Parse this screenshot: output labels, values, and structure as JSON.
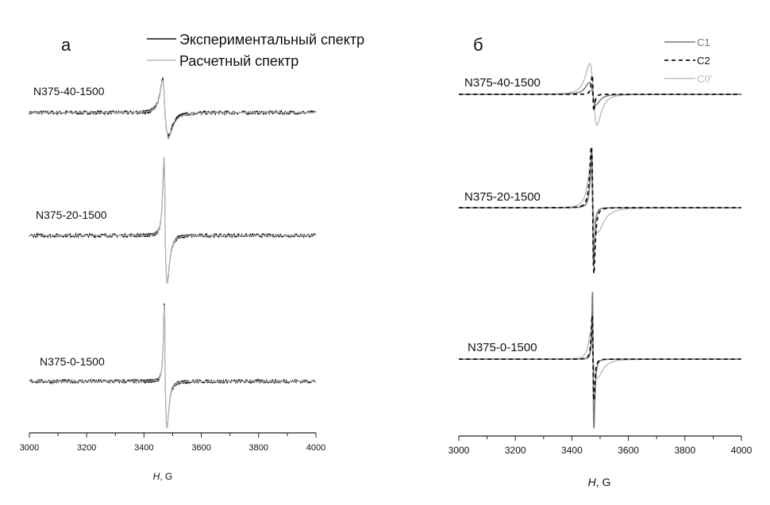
{
  "chart_data": [
    {
      "type": "line",
      "panel_label": "а",
      "xlabel_italic": "H",
      "xlabel_rest": ", G",
      "xlim": [
        3000,
        4000
      ],
      "xticks": [
        "3000",
        "3200",
        "3400",
        "3600",
        "3800",
        "4000"
      ],
      "grid": false,
      "legend_placement": "top",
      "legend": [
        {
          "name": "Экспериментальный спектр",
          "color": "#111111",
          "dash": false
        },
        {
          "name": "Расчетный спектр",
          "color": "#b9b9b9",
          "dash": false
        }
      ],
      "spectra": [
        {
          "label": "N375-40-1500",
          "experimental": {
            "center": 3473,
            "peak_field": 3465,
            "peak_amp": 0.42,
            "trough_field": 3485,
            "trough_amp": -0.3
          },
          "calculated": {
            "center": 3473,
            "peak_field": 3465,
            "peak_amp": 0.41,
            "trough_field": 3486,
            "trough_amp": -0.31
          }
        },
        {
          "label": "N375-20-1500",
          "experimental": {
            "center": 3474,
            "peak_field": 3470,
            "peak_amp": 0.97,
            "trough_field": 3481,
            "trough_amp": -0.6
          },
          "calculated": {
            "center": 3474,
            "peak_field": 3470,
            "peak_amp": 0.99,
            "trough_field": 3481,
            "trough_amp": -0.6
          }
        },
        {
          "label": "N375-0-1500",
          "experimental": {
            "center": 3474,
            "peak_field": 3471,
            "peak_amp": 0.98,
            "trough_field": 3480,
            "trough_amp": -0.59
          },
          "calculated": {
            "center": 3474,
            "peak_field": 3471,
            "peak_amp": 0.96,
            "trough_field": 3480,
            "trough_amp": -0.59
          }
        }
      ]
    },
    {
      "type": "line",
      "panel_label": "б",
      "xlabel_italic": "H",
      "xlabel_rest": ", G",
      "xlim": [
        3000,
        4000
      ],
      "xticks": [
        "3000",
        "3200",
        "3400",
        "3600",
        "3800",
        "4000"
      ],
      "grid": false,
      "legend_placement": "top-right",
      "legend": [
        {
          "name": "C1",
          "color": "#777777",
          "dash": false
        },
        {
          "name": "C2",
          "color": "#111111",
          "dash": true
        },
        {
          "name": "C0'",
          "color": "#b5b5ad",
          "dash": false
        }
      ],
      "spectra": [
        {
          "label": "N375-40-1500",
          "components": [
            {
              "name": "C0'",
              "center": 3476,
              "peak_field": 3463,
              "peak_amp": 0.39,
              "trough_field": 3489,
              "trough_amp": -0.39
            },
            {
              "name": "C1",
              "center": 3474,
              "peak_field": 3462,
              "peak_amp": 0.15,
              "trough_field": 3486,
              "trough_amp": -0.13
            },
            {
              "name": "C2",
              "center": 3475,
              "peak_field": 3472,
              "peak_amp": 0.24,
              "trough_field": 3478,
              "trough_amp": -0.21
            }
          ]
        },
        {
          "label": "N375-20-1500",
          "components": [
            {
              "name": "C0'",
              "center": 3474,
              "peak_field": 3465,
              "peak_amp": 0.5,
              "trough_field": 3492,
              "trough_amp": -0.31
            },
            {
              "name": "C1",
              "center": 3474,
              "peak_field": 3470,
              "peak_amp": 0.72,
              "trough_field": 3477,
              "trough_amp": -0.73
            },
            {
              "name": "C2",
              "center": 3474,
              "peak_field": 3469,
              "peak_amp": 0.77,
              "trough_field": 3478,
              "trough_amp": -0.83
            }
          ]
        },
        {
          "label": "N375-0-1500",
          "components": [
            {
              "name": "C0'",
              "center": 3474,
              "peak_field": 3467,
              "peak_amp": 0.35,
              "trough_field": 3490,
              "trough_amp": -0.24
            },
            {
              "name": "C1",
              "center": 3475,
              "peak_field": 3473,
              "peak_amp": 0.85,
              "trough_field": 3478,
              "trough_amp": -0.87
            },
            {
              "name": "C2",
              "center": 3475,
              "peak_field": 3472,
              "peak_amp": 0.55,
              "trough_field": 3478,
              "trough_amp": -0.52
            }
          ]
        }
      ]
    }
  ]
}
